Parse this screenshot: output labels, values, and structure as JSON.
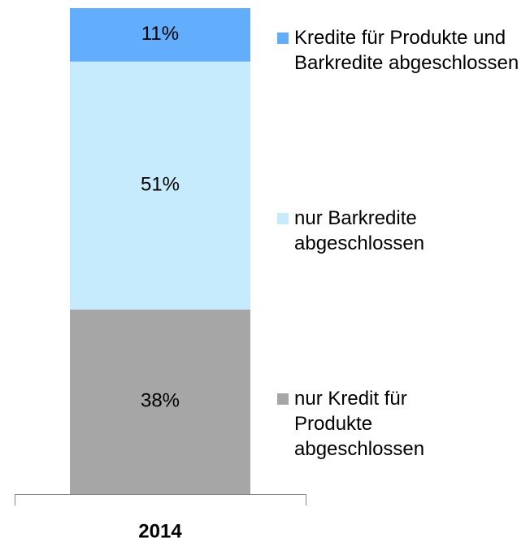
{
  "chart_data": {
    "type": "stacked-bar",
    "categories": [
      "2014"
    ],
    "series": [
      {
        "name": "nur Kredit für Produkte abgeschlossen",
        "color": "#a6a6a6",
        "values": [
          38
        ],
        "value_labels": [
          "38%"
        ]
      },
      {
        "name": "nur Barkredite abgeschlossen",
        "color": "#c6ebfc",
        "values": [
          51
        ],
        "value_labels": [
          "51%"
        ]
      },
      {
        "name": "Kredite für Produkte und Barkredite abgeschlossen",
        "color": "#63aefc",
        "values": [
          11
        ],
        "value_labels": [
          "11%"
        ]
      }
    ],
    "ylim": [
      0,
      100
    ]
  }
}
